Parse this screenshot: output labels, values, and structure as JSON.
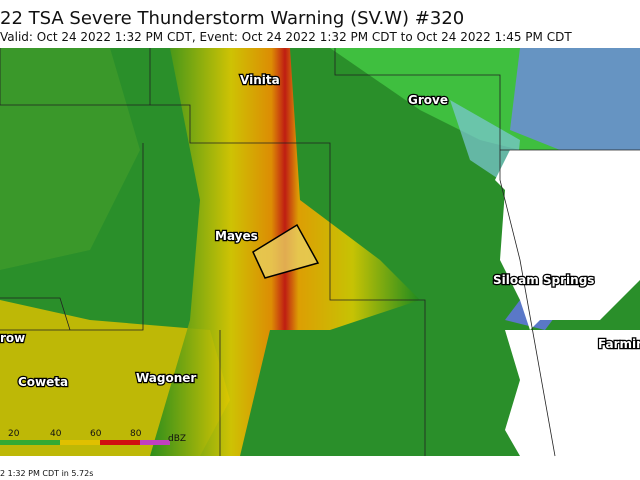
{
  "header": {
    "title": "22 TSA Severe Thunderstorm Warning (SV.W) #320",
    "subtitle": "Valid: Oct 24 2022 1:32 PM CDT, Event: Oct 24 2022 1:32 PM CDT to Oct 24 2022 1:45 PM CDT"
  },
  "places": [
    {
      "label": "Vinita"
    },
    {
      "label": "Grove"
    },
    {
      "label": "Mayes"
    },
    {
      "label": "Siloam Springs"
    },
    {
      "label": "Farming"
    },
    {
      "label": "row"
    },
    {
      "label": "Coweta"
    },
    {
      "label": "Wagoner"
    }
  ],
  "legend": {
    "ticks": [
      "20",
      "40",
      "60",
      "80"
    ],
    "unit": "dBZ"
  },
  "footer": {
    "text": "2 1:32 PM CDT in 5.72s"
  }
}
